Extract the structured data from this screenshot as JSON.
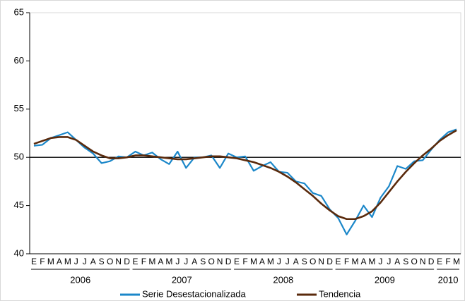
{
  "chart_data": {
    "type": "line",
    "categories": [
      "E",
      "F",
      "M",
      "A",
      "M",
      "J",
      "J",
      "A",
      "S",
      "O",
      "N",
      "D",
      "E",
      "F",
      "M",
      "A",
      "M",
      "J",
      "J",
      "A",
      "S",
      "O",
      "N",
      "D",
      "E",
      "F",
      "M",
      "A",
      "M",
      "J",
      "J",
      "A",
      "S",
      "O",
      "N",
      "D",
      "E",
      "F",
      "M",
      "A",
      "M",
      "J",
      "J",
      "A",
      "S",
      "O",
      "N",
      "D",
      "E",
      "F",
      "M"
    ],
    "years": [
      "2006",
      "2007",
      "2008",
      "2009",
      "2010"
    ],
    "series": [
      {
        "name": "Serie Desestacionalizada",
        "color": "#1b87c9",
        "values": [
          51.2,
          51.3,
          52.0,
          52.3,
          52.6,
          51.8,
          51.0,
          50.4,
          49.4,
          49.6,
          50.1,
          50.0,
          50.6,
          50.2,
          50.5,
          49.8,
          49.3,
          50.6,
          48.9,
          50.0,
          50.0,
          50.2,
          48.9,
          50.4,
          50.0,
          50.1,
          48.6,
          49.1,
          49.5,
          48.5,
          48.4,
          47.5,
          47.3,
          46.3,
          46.0,
          44.6,
          43.7,
          42.0,
          43.4,
          45.0,
          43.8,
          45.8,
          47.0,
          49.1,
          48.8,
          49.6,
          49.7,
          50.8,
          51.8,
          52.6,
          52.9
        ]
      },
      {
        "name": "Tendencia",
        "color": "#5a2a0c",
        "values": [
          51.4,
          51.7,
          52.0,
          52.1,
          52.1,
          51.8,
          51.2,
          50.6,
          50.2,
          49.9,
          49.9,
          50.0,
          50.2,
          50.2,
          50.1,
          50.0,
          49.9,
          49.8,
          49.8,
          49.9,
          50.0,
          50.1,
          50.1,
          50.0,
          49.9,
          49.7,
          49.5,
          49.2,
          48.9,
          48.5,
          48.0,
          47.4,
          46.7,
          46.0,
          45.2,
          44.5,
          43.9,
          43.6,
          43.6,
          43.9,
          44.4,
          45.3,
          46.4,
          47.5,
          48.5,
          49.4,
          50.2,
          50.9,
          51.7,
          52.3,
          52.8
        ]
      }
    ],
    "ylim": [
      40,
      65
    ],
    "yticks": [
      40,
      45,
      50,
      55,
      60,
      65
    ],
    "hline": 50
  }
}
